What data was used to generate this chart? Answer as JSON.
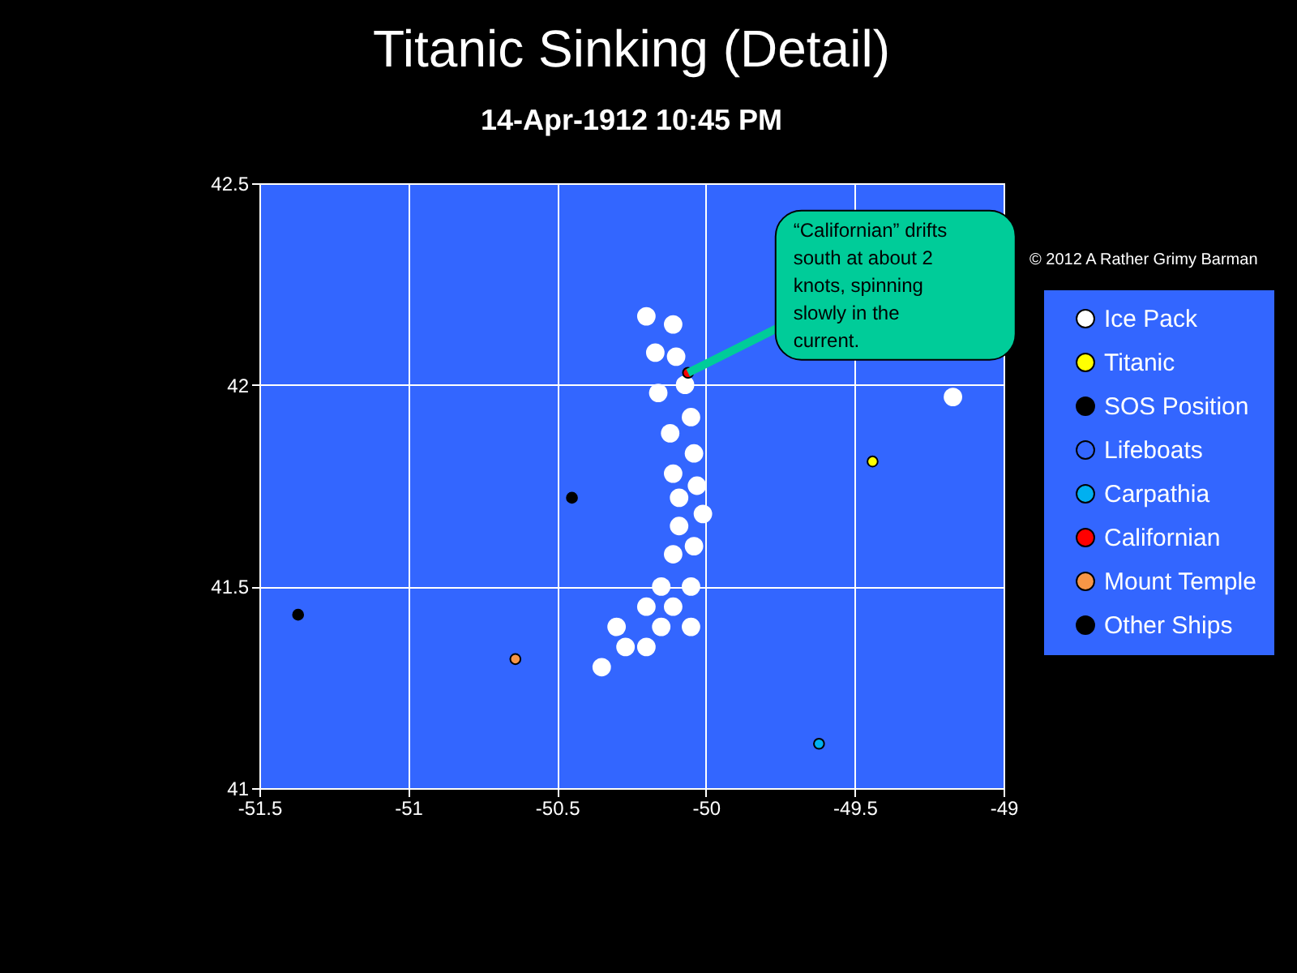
{
  "chart_data": {
    "type": "scatter",
    "title": "Titanic Sinking (Detail)",
    "subtitle": "14-Apr-1912  10:45 PM",
    "xlim": [
      -51.5,
      -49
    ],
    "xticks": [
      -51.5,
      -51,
      -50.5,
      -50,
      -49.5,
      -49
    ],
    "ylim": [
      41,
      42.5
    ],
    "yticks": [
      41,
      41.5,
      42,
      42.5
    ],
    "grid": true,
    "legend": "right",
    "marker": "circle",
    "annotations": [
      {
        "text": "“Californian” drifts south at about 2 knots, spinning slowly in the current.",
        "x": -50.06,
        "y": 42.03
      },
      "© 2012  A Rather Grimy Barman"
    ],
    "series": [
      {
        "name": "Ice Pack",
        "color": "#ffffff",
        "x": [
          -50.2,
          -50.11,
          -50.17,
          -50.1,
          -50.07,
          -50.16,
          -50.05,
          -50.12,
          -50.04,
          -50.11,
          -50.03,
          -50.09,
          -50.01,
          -50.09,
          -50.11,
          -50.04,
          -50.15,
          -50.05,
          -50.2,
          -50.11,
          -50.3,
          -50.15,
          -50.05,
          -50.27,
          -50.2,
          -50.35,
          -49.17
        ],
        "values": [
          42.17,
          42.15,
          42.08,
          42.07,
          42,
          41.98,
          41.92,
          41.88,
          41.83,
          41.78,
          41.75,
          41.72,
          41.68,
          41.65,
          41.58,
          41.6,
          41.5,
          41.5,
          41.45,
          41.45,
          41.4,
          41.4,
          41.4,
          41.35,
          41.35,
          41.3,
          41.97
        ]
      },
      {
        "name": "Titanic",
        "color": "#ffff00",
        "x": [
          -49.44
        ],
        "values": [
          41.81
        ]
      },
      {
        "name": "SOS Position",
        "color": "#000000"
      },
      {
        "name": "Lifeboats",
        "color": "#3366ff"
      },
      {
        "name": "Carpathia",
        "color": "#00b0f0",
        "x": [
          -49.62
        ],
        "values": [
          41.11
        ]
      },
      {
        "name": "Californian",
        "color": "#ff0000",
        "x": [
          -50.06
        ],
        "values": [
          42.03
        ]
      },
      {
        "name": "Mount Temple",
        "color": "#f79646",
        "x": [
          -50.64
        ],
        "values": [
          41.32
        ]
      },
      {
        "name": "Other Ships",
        "color": "#000000",
        "x": [
          -51.37,
          -50.45
        ],
        "values": [
          41.43,
          41.72
        ]
      }
    ]
  }
}
